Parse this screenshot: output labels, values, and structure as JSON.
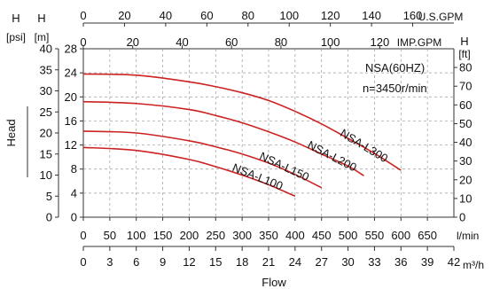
{
  "chart_data": {
    "type": "line",
    "title": "",
    "annotations": {
      "model": "NSA(60HZ)",
      "speed": "n=3450r/min"
    },
    "axes": {
      "bottom_lpm": {
        "unit": "l/min",
        "range": [
          0,
          700
        ],
        "ticks": [
          0,
          50,
          100,
          150,
          200,
          250,
          300,
          350,
          400,
          450,
          500,
          550,
          600,
          650
        ]
      },
      "bottom_m3h": {
        "unit": "m³/h",
        "label": "Flow",
        "range": [
          0,
          42
        ],
        "ticks": [
          0,
          3,
          6,
          9,
          12,
          15,
          18,
          21,
          24,
          27,
          30,
          33,
          36,
          39,
          42
        ]
      },
      "top_usgpm": {
        "unit": "U.S.GPM",
        "range": [
          0,
          180
        ],
        "ticks": [
          0,
          20,
          40,
          60,
          80,
          100,
          120,
          140,
          160
        ]
      },
      "top_impgpm": {
        "unit": "IMP.GPM",
        "range": [
          0,
          150
        ],
        "ticks": [
          0,
          20,
          40,
          60,
          80,
          100,
          120
        ]
      },
      "left_m": {
        "letter": "H",
        "unit": "[m]",
        "range": [
          0,
          28
        ],
        "ticks": [
          0,
          4,
          8,
          12,
          16,
          20,
          24,
          28
        ]
      },
      "left_psi": {
        "letter": "H",
        "unit": "[psi]",
        "range": [
          0,
          40
        ],
        "ticks": [
          0,
          5,
          10,
          15,
          20,
          25,
          30,
          35,
          40
        ]
      },
      "right_ft": {
        "letter": "H",
        "unit": "[ft]",
        "range": [
          0,
          90
        ],
        "ticks": [
          0,
          10,
          20,
          30,
          40,
          50,
          60,
          70,
          80
        ]
      },
      "ylabel": "Head"
    },
    "series": [
      {
        "name": "NSA-L100",
        "color": "#cc2222",
        "x": [
          0,
          100,
          200,
          250,
          300,
          350,
          400
        ],
        "y": [
          11.6,
          11.1,
          9.6,
          8.4,
          7.0,
          5.4,
          3.5
        ]
      },
      {
        "name": "NSA-L150",
        "color": "#cc2222",
        "x": [
          0,
          100,
          200,
          250,
          300,
          350,
          400,
          450
        ],
        "y": [
          14.3,
          14.0,
          12.7,
          11.7,
          10.5,
          9.0,
          7.1,
          4.9
        ]
      },
      {
        "name": "NSA-L200",
        "color": "#cc2222",
        "x": [
          0,
          100,
          200,
          250,
          300,
          350,
          400,
          450,
          500,
          530
        ],
        "y": [
          19.2,
          18.9,
          17.9,
          16.9,
          15.7,
          14.2,
          12.5,
          10.5,
          8.5,
          6.9
        ]
      },
      {
        "name": "NSA-L300",
        "color": "#cc2222",
        "x": [
          0,
          100,
          200,
          250,
          300,
          350,
          400,
          450,
          500,
          550,
          600
        ],
        "y": [
          23.8,
          23.6,
          22.5,
          21.7,
          20.7,
          19.4,
          17.6,
          15.5,
          13.1,
          10.6,
          7.8
        ]
      }
    ]
  }
}
